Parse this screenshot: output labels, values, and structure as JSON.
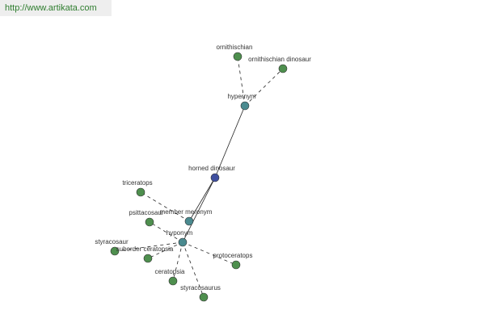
{
  "header": {
    "url": "http://www.artikata.com"
  },
  "nodes": [
    {
      "label": "horned dinosaur"
    },
    {
      "label": "hypernym"
    },
    {
      "label": "ornithischian"
    },
    {
      "label": "ornithischian dinosaur"
    },
    {
      "label": "member meronym"
    },
    {
      "label": "hyponym"
    },
    {
      "label": "triceratops"
    },
    {
      "label": "psittacosaur"
    },
    {
      "label": "styracosaur"
    },
    {
      "label": "suborder ceratopsia"
    },
    {
      "label": "protoceratops"
    },
    {
      "label": "ceratopsia"
    },
    {
      "label": "styracosaurus"
    }
  ]
}
